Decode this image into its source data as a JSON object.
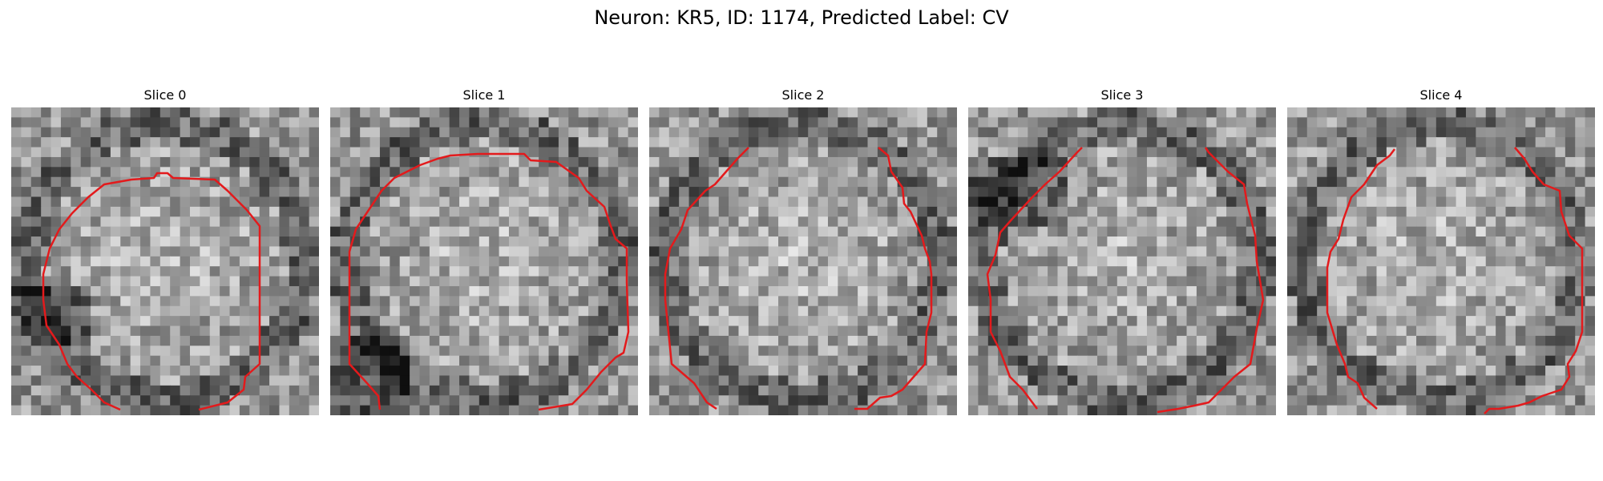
{
  "figure": {
    "title": "Neuron: KR5, ID: 1174, Predicted Label: CV"
  },
  "panels": [
    {
      "title": "Slice 0"
    },
    {
      "title": "Slice 1"
    },
    {
      "title": "Slice 2"
    },
    {
      "title": "Slice 3"
    },
    {
      "title": "Slice 4"
    }
  ],
  "colors": {
    "contour": "#e31a1c",
    "background": "#ffffff"
  }
}
